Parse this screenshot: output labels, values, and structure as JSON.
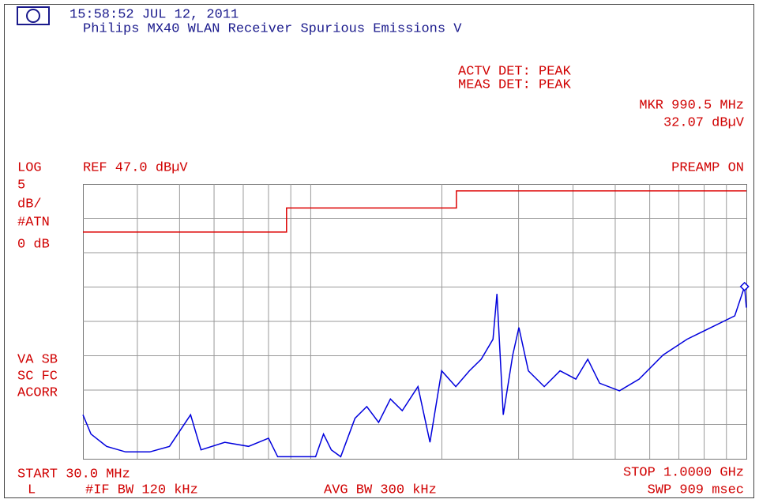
{
  "header": {
    "time": "15:58:52 JUL 12, 2011",
    "title": "Philips MX40 WLAN Receiver Spurious Emissions V"
  },
  "status": {
    "active_detector": "ACTV DET: PEAK",
    "measure_detector": "MEAS DET: PEAK"
  },
  "marker": {
    "label": "MKR 990.5 MHz",
    "level_label": "32.07 dBµV",
    "x": 990.5,
    "value": 32.07
  },
  "left_panel": [
    "LOG",
    "5",
    "dB/",
    "#ATN",
    "0 dB",
    "VA SB",
    "SC FC",
    "ACORR"
  ],
  "reference": "REF 47.0 dBµV",
  "preamp": "PREAMP ON",
  "footer": {
    "start": "START 30.0 MHz",
    "stop": "STOP 1.0000 GHz",
    "mode": "L",
    "if_bw": "#IF BW 120 kHz",
    "avg_bw": "AVG BW 300 kHz",
    "sweep": "SWP 909 msec"
  },
  "display": {
    "xlog": true,
    "xlim": [
      30,
      1000
    ],
    "ylim": [
      7,
      47
    ],
    "xticks": [
      40,
      50,
      60,
      70,
      80,
      90,
      100,
      200,
      300,
      400,
      500,
      600,
      700,
      800,
      900
    ],
    "yticks": [
      12,
      17,
      22,
      27,
      32,
      37,
      42
    ],
    "trace": {
      "color": "#0000dd",
      "x": [
        30,
        31.3,
        34.0,
        37.6,
        42.7,
        47.4,
        53.0,
        56.0,
        63.5,
        72.0,
        80.0,
        84.0,
        102.6,
        107.0,
        111.5,
        117.2,
        126.4,
        134.5,
        143.2,
        152.4,
        162.2,
        176.3,
        187.8,
        199.8,
        215.3,
        231.3,
        246.3,
        262.1,
        267.6,
        276.7,
        290.9,
        300.5,
        316.0,
        343.6,
        373.5,
        406.1,
        432.5,
        460.4,
        511.2,
        567.4,
        643.7,
        731.0,
        829.2,
        940.6,
        990.5,
        1000
      ],
      "values": [
        13.4,
        10.6,
        8.8,
        8.0,
        8.0,
        8.8,
        13.4,
        8.3,
        9.4,
        8.8,
        10.0,
        7.3,
        7.3,
        10.6,
        8.3,
        7.3,
        12.9,
        14.6,
        12.3,
        15.7,
        14.0,
        17.5,
        9.4,
        19.8,
        17.5,
        19.8,
        21.5,
        24.4,
        31.0,
        13.4,
        22.1,
        26.1,
        19.8,
        17.5,
        19.8,
        18.6,
        21.5,
        18.0,
        16.9,
        18.6,
        22.1,
        24.4,
        26.1,
        27.8,
        32.07,
        29.0
      ]
    },
    "limit": {
      "color": "#dd0000",
      "x": [
        30,
        88,
        88,
        216,
        216,
        1000
      ],
      "values": [
        40,
        40,
        43.5,
        43.5,
        46,
        46
      ]
    }
  }
}
